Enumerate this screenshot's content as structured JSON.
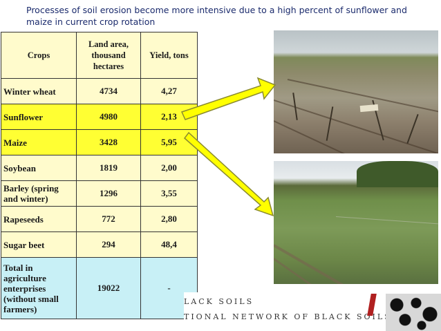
{
  "title": "Processes of soil erosion become more intensive due to a high percent of sunflower and maize in current crop rotation",
  "table": {
    "headers": [
      "Crops",
      "Land area, thousand hectares",
      "Yield, tons"
    ],
    "rows": [
      {
        "crop": "Winter wheat",
        "area": "4734",
        "yield": "4,27",
        "style": "pale"
      },
      {
        "crop": "Sunflower",
        "area": "4980",
        "yield": "2,13",
        "style": "hl"
      },
      {
        "crop": "Maize",
        "area": "3428",
        "yield": "5,95",
        "style": "hl"
      },
      {
        "crop": "Soybean",
        "area": "1819",
        "yield": "2,00",
        "style": "pale"
      },
      {
        "crop": "Barley (spring and winter)",
        "area": "1296",
        "yield": "3,55",
        "style": "pale"
      },
      {
        "crop": "Rapeseeds",
        "area": "772",
        "yield": "2,80",
        "style": "pale"
      },
      {
        "crop": "Sugar beet",
        "area": "294",
        "yield": "48,4",
        "style": "pale"
      },
      {
        "crop": "Total in agriculture enterprises (without small farmers)",
        "area": "19022",
        "yield": "-",
        "style": "total"
      }
    ]
  },
  "footer": {
    "line1": "LACK SOILS",
    "line2": "TIONAL NETWORK OF BLACK SOILS"
  },
  "colors": {
    "title": "#1a2a6c",
    "highlight": "#ffff33",
    "pale": "#fffbcc",
    "total": "#c8f0f6",
    "arrow_fill": "#ffff00",
    "arrow_stroke": "#8a8a30"
  }
}
